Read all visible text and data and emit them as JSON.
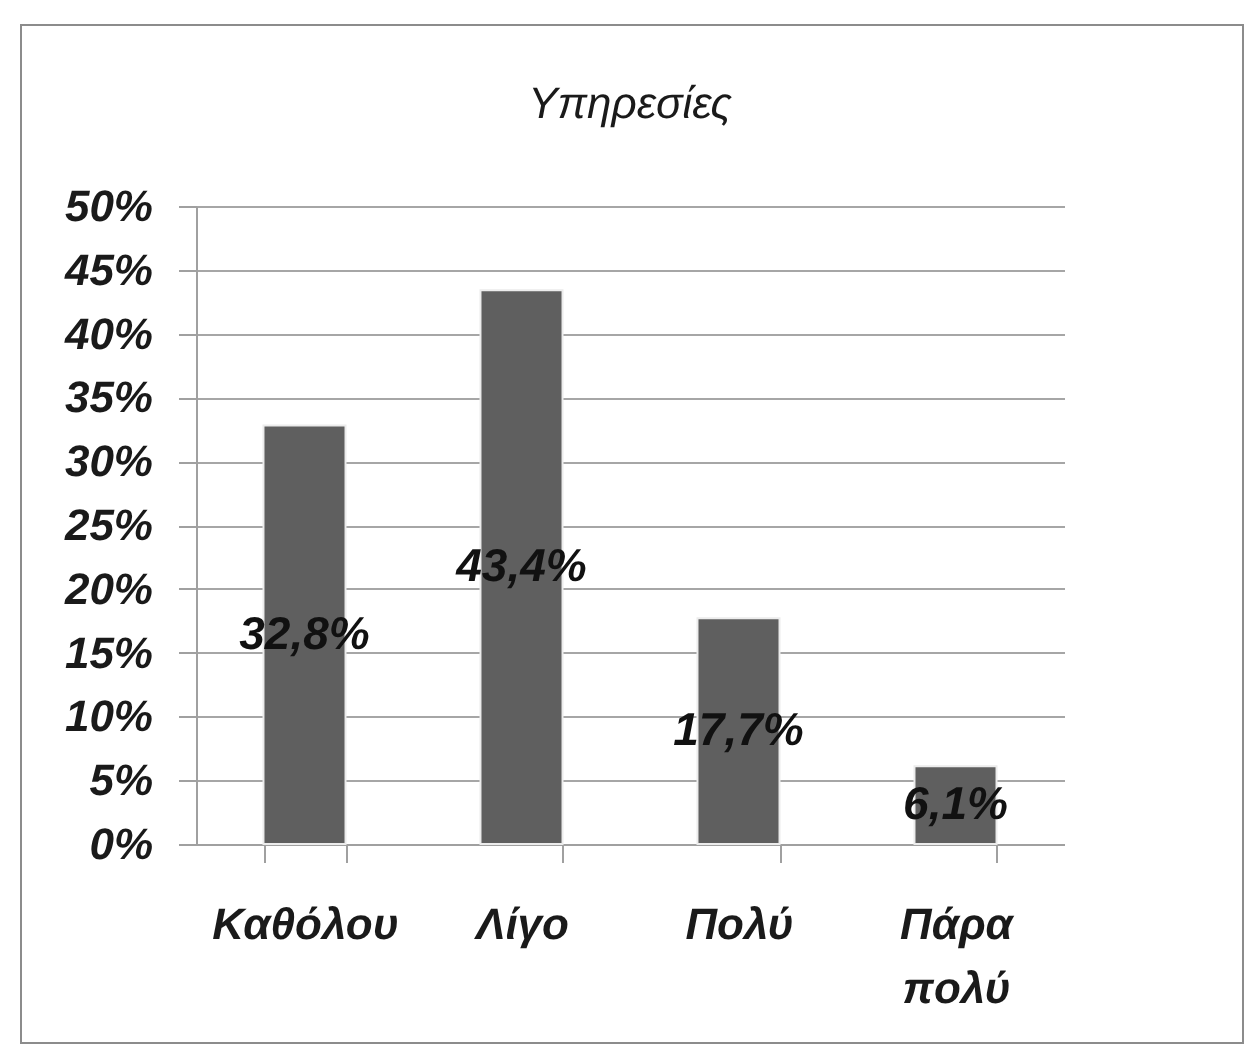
{
  "chart_data": {
    "type": "bar",
    "title": "Υπηρεσίες",
    "categories": [
      "Καθόλου",
      "Λίγο",
      "Πολύ",
      "Πάρα πολύ"
    ],
    "values": [
      32.8,
      43.4,
      17.7,
      6.1
    ],
    "value_labels": [
      "32,8%",
      "43,4%",
      "17,7%",
      "6,1%"
    ],
    "color": "#5f5f5f",
    "ylim": [
      0,
      50
    ],
    "yticks": [
      {
        "value": 0,
        "label": "0%"
      },
      {
        "value": 5,
        "label": "5%"
      },
      {
        "value": 10,
        "label": "10%"
      },
      {
        "value": 15,
        "label": "15%"
      },
      {
        "value": 20,
        "label": "20%"
      },
      {
        "value": 25,
        "label": "25%"
      },
      {
        "value": 30,
        "label": "30%"
      },
      {
        "value": 35,
        "label": "35%"
      },
      {
        "value": 40,
        "label": "40%"
      },
      {
        "value": 45,
        "label": "45%"
      },
      {
        "value": 50,
        "label": "50%"
      }
    ],
    "grid": "y"
  }
}
